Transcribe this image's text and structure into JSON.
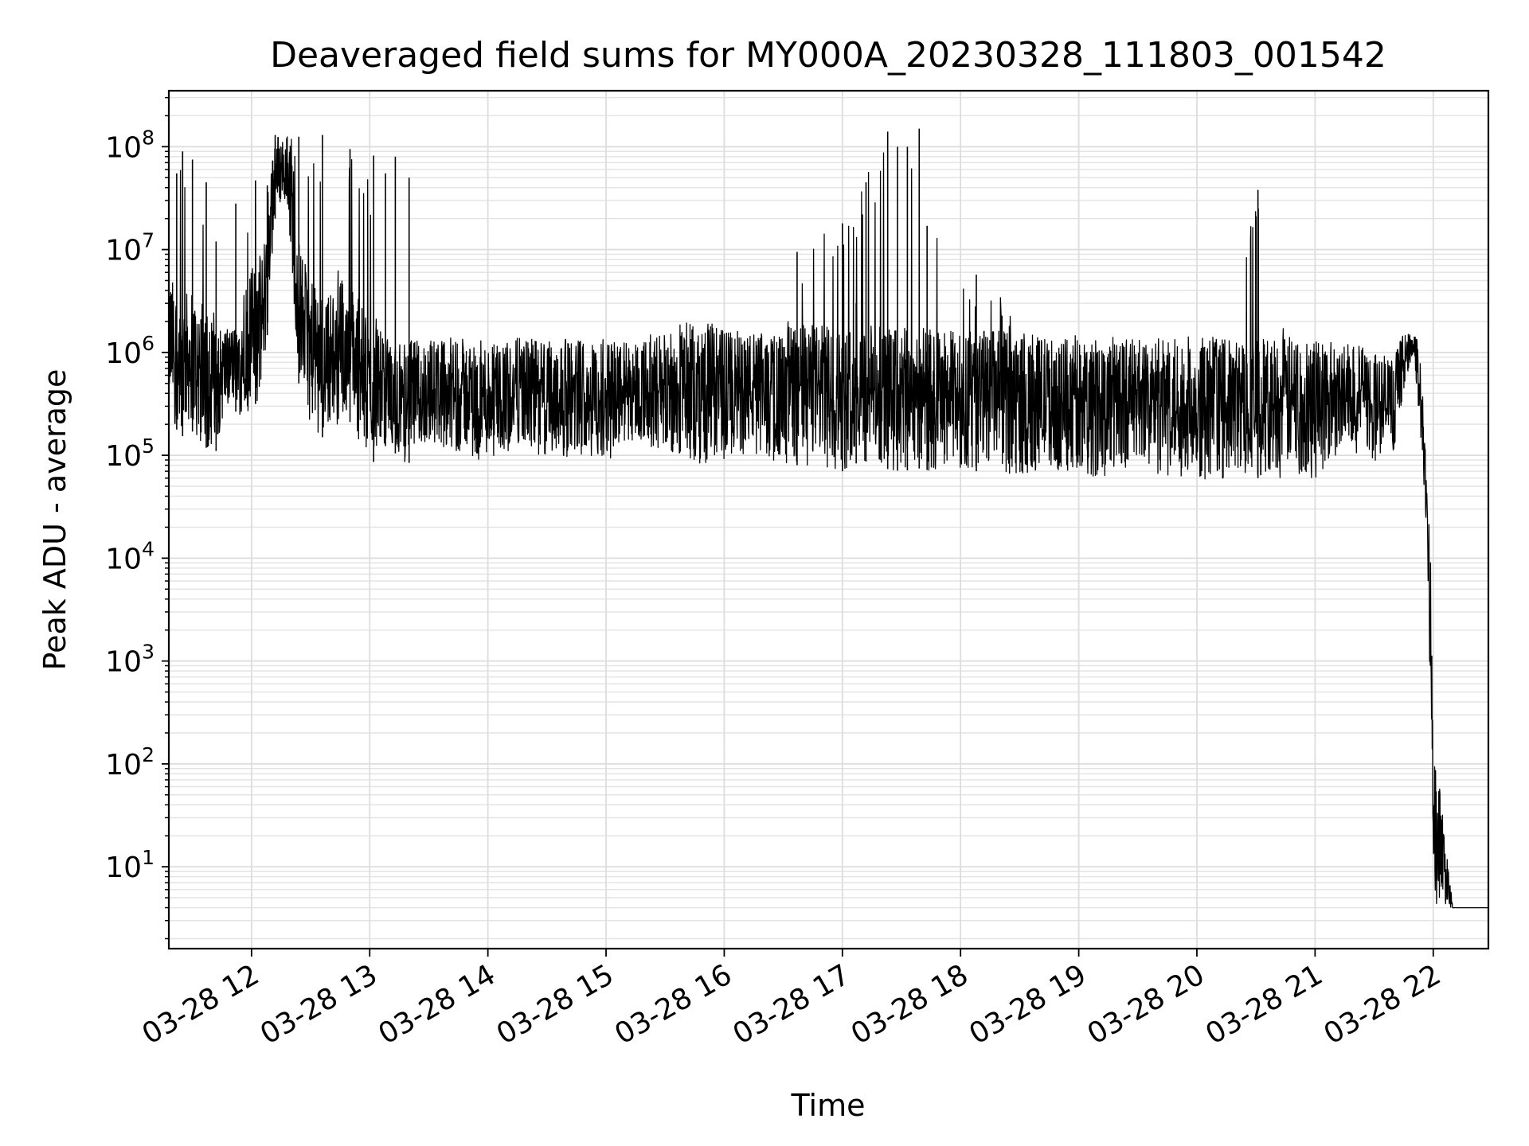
{
  "chart_data": {
    "type": "line",
    "title": "Deaveraged field sums for MY000A_20230328_111803_001542",
    "xlabel": "Time",
    "ylabel": "Peak ADU - average",
    "yscale": "log",
    "grid": true,
    "grid_minor": true,
    "xlim": [
      "03-28 11:18",
      "03-28 22:28"
    ],
    "ylim": [
      1.6,
      350000000
    ],
    "x_ticks": [
      "03-28 12",
      "03-28 13",
      "03-28 14",
      "03-28 15",
      "03-28 16",
      "03-28 17",
      "03-28 18",
      "03-28 19",
      "03-28 20",
      "03-28 21",
      "03-28 22"
    ],
    "y_ticks": [
      {
        "value": 10,
        "base": "10",
        "exp": "1"
      },
      {
        "value": 100,
        "base": "10",
        "exp": "2"
      },
      {
        "value": 1000,
        "base": "10",
        "exp": "3"
      },
      {
        "value": 10000,
        "base": "10",
        "exp": "4"
      },
      {
        "value": 100000,
        "base": "10",
        "exp": "5"
      },
      {
        "value": 1000000,
        "base": "10",
        "exp": "6"
      },
      {
        "value": 10000000,
        "base": "10",
        "exp": "7"
      },
      {
        "value": 100000000,
        "base": "10",
        "exp": "8"
      }
    ],
    "line_color": "#000000",
    "series": [
      {
        "x": [
          "03-28 11:18",
          "03-28 11:24",
          "03-28 11:30",
          "03-28 11:36",
          "03-28 11:42",
          "03-28 11:48",
          "03-28 11:54",
          "03-28 12:00",
          "03-28 12:06",
          "03-28 12:12",
          "03-28 12:18",
          "03-28 12:24",
          "03-28 12:30",
          "03-28 12:36",
          "03-28 12:42",
          "03-28 12:48",
          "03-28 12:54",
          "03-28 13:00",
          "03-28 13:06",
          "03-28 13:12",
          "03-28 13:18",
          "03-28 13:30",
          "03-28 13:45",
          "03-28 14:00",
          "03-28 14:15",
          "03-28 14:30",
          "03-28 14:45",
          "03-28 15:00",
          "03-28 15:15",
          "03-28 15:30",
          "03-28 15:45",
          "03-28 16:00",
          "03-28 16:15",
          "03-28 16:30",
          "03-28 16:45",
          "03-28 17:00",
          "03-28 17:10",
          "03-28 17:20",
          "03-28 17:30",
          "03-28 17:40",
          "03-28 17:50",
          "03-28 18:00",
          "03-28 18:15",
          "03-28 18:30",
          "03-28 18:45",
          "03-28 19:00",
          "03-28 19:15",
          "03-28 19:30",
          "03-28 19:45",
          "03-28 20:00",
          "03-28 20:15",
          "03-28 20:30",
          "03-28 20:45",
          "03-28 21:00",
          "03-28 21:15",
          "03-28 21:30",
          "03-28 21:40",
          "03-28 21:45",
          "03-28 21:50",
          "03-28 21:54",
          "03-28 21:57",
          "03-28 21:59",
          "03-28 22:00",
          "03-28 22:10",
          "03-28 22:28"
        ],
        "low": [
          250000,
          150000,
          170000,
          120000,
          110000,
          300000,
          250000,
          280000,
          400000,
          20000000,
          30000000,
          500000,
          200000,
          150000,
          180000,
          250000,
          150000,
          70000,
          130000,
          110000,
          80000,
          110000,
          100000,
          80000,
          110000,
          90000,
          100000,
          90000,
          120000,
          110000,
          80000,
          90000,
          100000,
          80000,
          80000,
          70000,
          90000,
          75000,
          70000,
          75000,
          65000,
          70000,
          70000,
          65000,
          70000,
          65000,
          60000,
          80000,
          60000,
          60000,
          55000,
          60000,
          60000,
          60000,
          120000,
          80000,
          90000,
          400000,
          1000000,
          80000,
          8000,
          200,
          4,
          4,
          4
        ],
        "high": [
          50000000,
          80000000,
          55000000,
          28000000,
          1500000,
          1800000,
          1700000,
          45000000,
          40000000,
          130000000,
          130000000,
          125000000,
          90000000,
          95000000,
          2500000,
          80000000,
          82000000,
          50000000,
          1300000,
          1300000,
          1200000,
          1300000,
          1300000,
          1200000,
          1300000,
          1250000,
          1300000,
          1250000,
          1300000,
          1500000,
          2000000,
          1600000,
          1500000,
          1400000,
          18000000,
          12000000,
          45000000,
          100000000,
          140000000,
          150000000,
          16000000,
          4000000,
          6000000,
          1500000,
          1300000,
          1400000,
          1400000,
          1300000,
          1300000,
          1400000,
          1500000,
          40000000,
          1400000,
          1400000,
          1200000,
          1000000,
          900000,
          1500000,
          1500000,
          1200000,
          30000,
          20000,
          200,
          4,
          4
        ],
        "peaks": [
          {
            "x": "03-28 11:22",
            "y": 55000000
          },
          {
            "x": "03-28 11:25",
            "y": 90000000
          },
          {
            "x": "03-28 11:30",
            "y": 75000000
          },
          {
            "x": "03-28 11:37",
            "y": 45000000
          },
          {
            "x": "03-28 11:42",
            "y": 12000000
          },
          {
            "x": "03-28 11:52",
            "y": 28000000
          },
          {
            "x": "03-28 12:02",
            "y": 47000000
          },
          {
            "x": "03-28 12:08",
            "y": 42000000
          },
          {
            "x": "03-28 12:12",
            "y": 130000000
          },
          {
            "x": "03-28 12:24",
            "y": 125000000
          },
          {
            "x": "03-28 12:36",
            "y": 130000000
          },
          {
            "x": "03-28 12:50",
            "y": 95000000
          },
          {
            "x": "03-28 13:02",
            "y": 82000000
          },
          {
            "x": "03-28 13:08",
            "y": 55000000
          },
          {
            "x": "03-28 13:13",
            "y": 80000000
          },
          {
            "x": "03-28 13:20",
            "y": 50000000
          },
          {
            "x": "03-28 16:37",
            "y": 9500000
          },
          {
            "x": "03-28 17:00",
            "y": 18000000
          },
          {
            "x": "03-28 17:07",
            "y": 3000000
          },
          {
            "x": "03-28 17:12",
            "y": 45000000
          },
          {
            "x": "03-28 17:23",
            "y": 140000000
          },
          {
            "x": "03-28 17:28",
            "y": 100000000
          },
          {
            "x": "03-28 17:33",
            "y": 100000000
          },
          {
            "x": "03-28 17:39",
            "y": 150000000
          },
          {
            "x": "03-28 17:43",
            "y": 17000000
          },
          {
            "x": "03-28 18:08",
            "y": 5700000
          },
          {
            "x": "03-28 20:31",
            "y": 38000000
          }
        ]
      }
    ]
  }
}
